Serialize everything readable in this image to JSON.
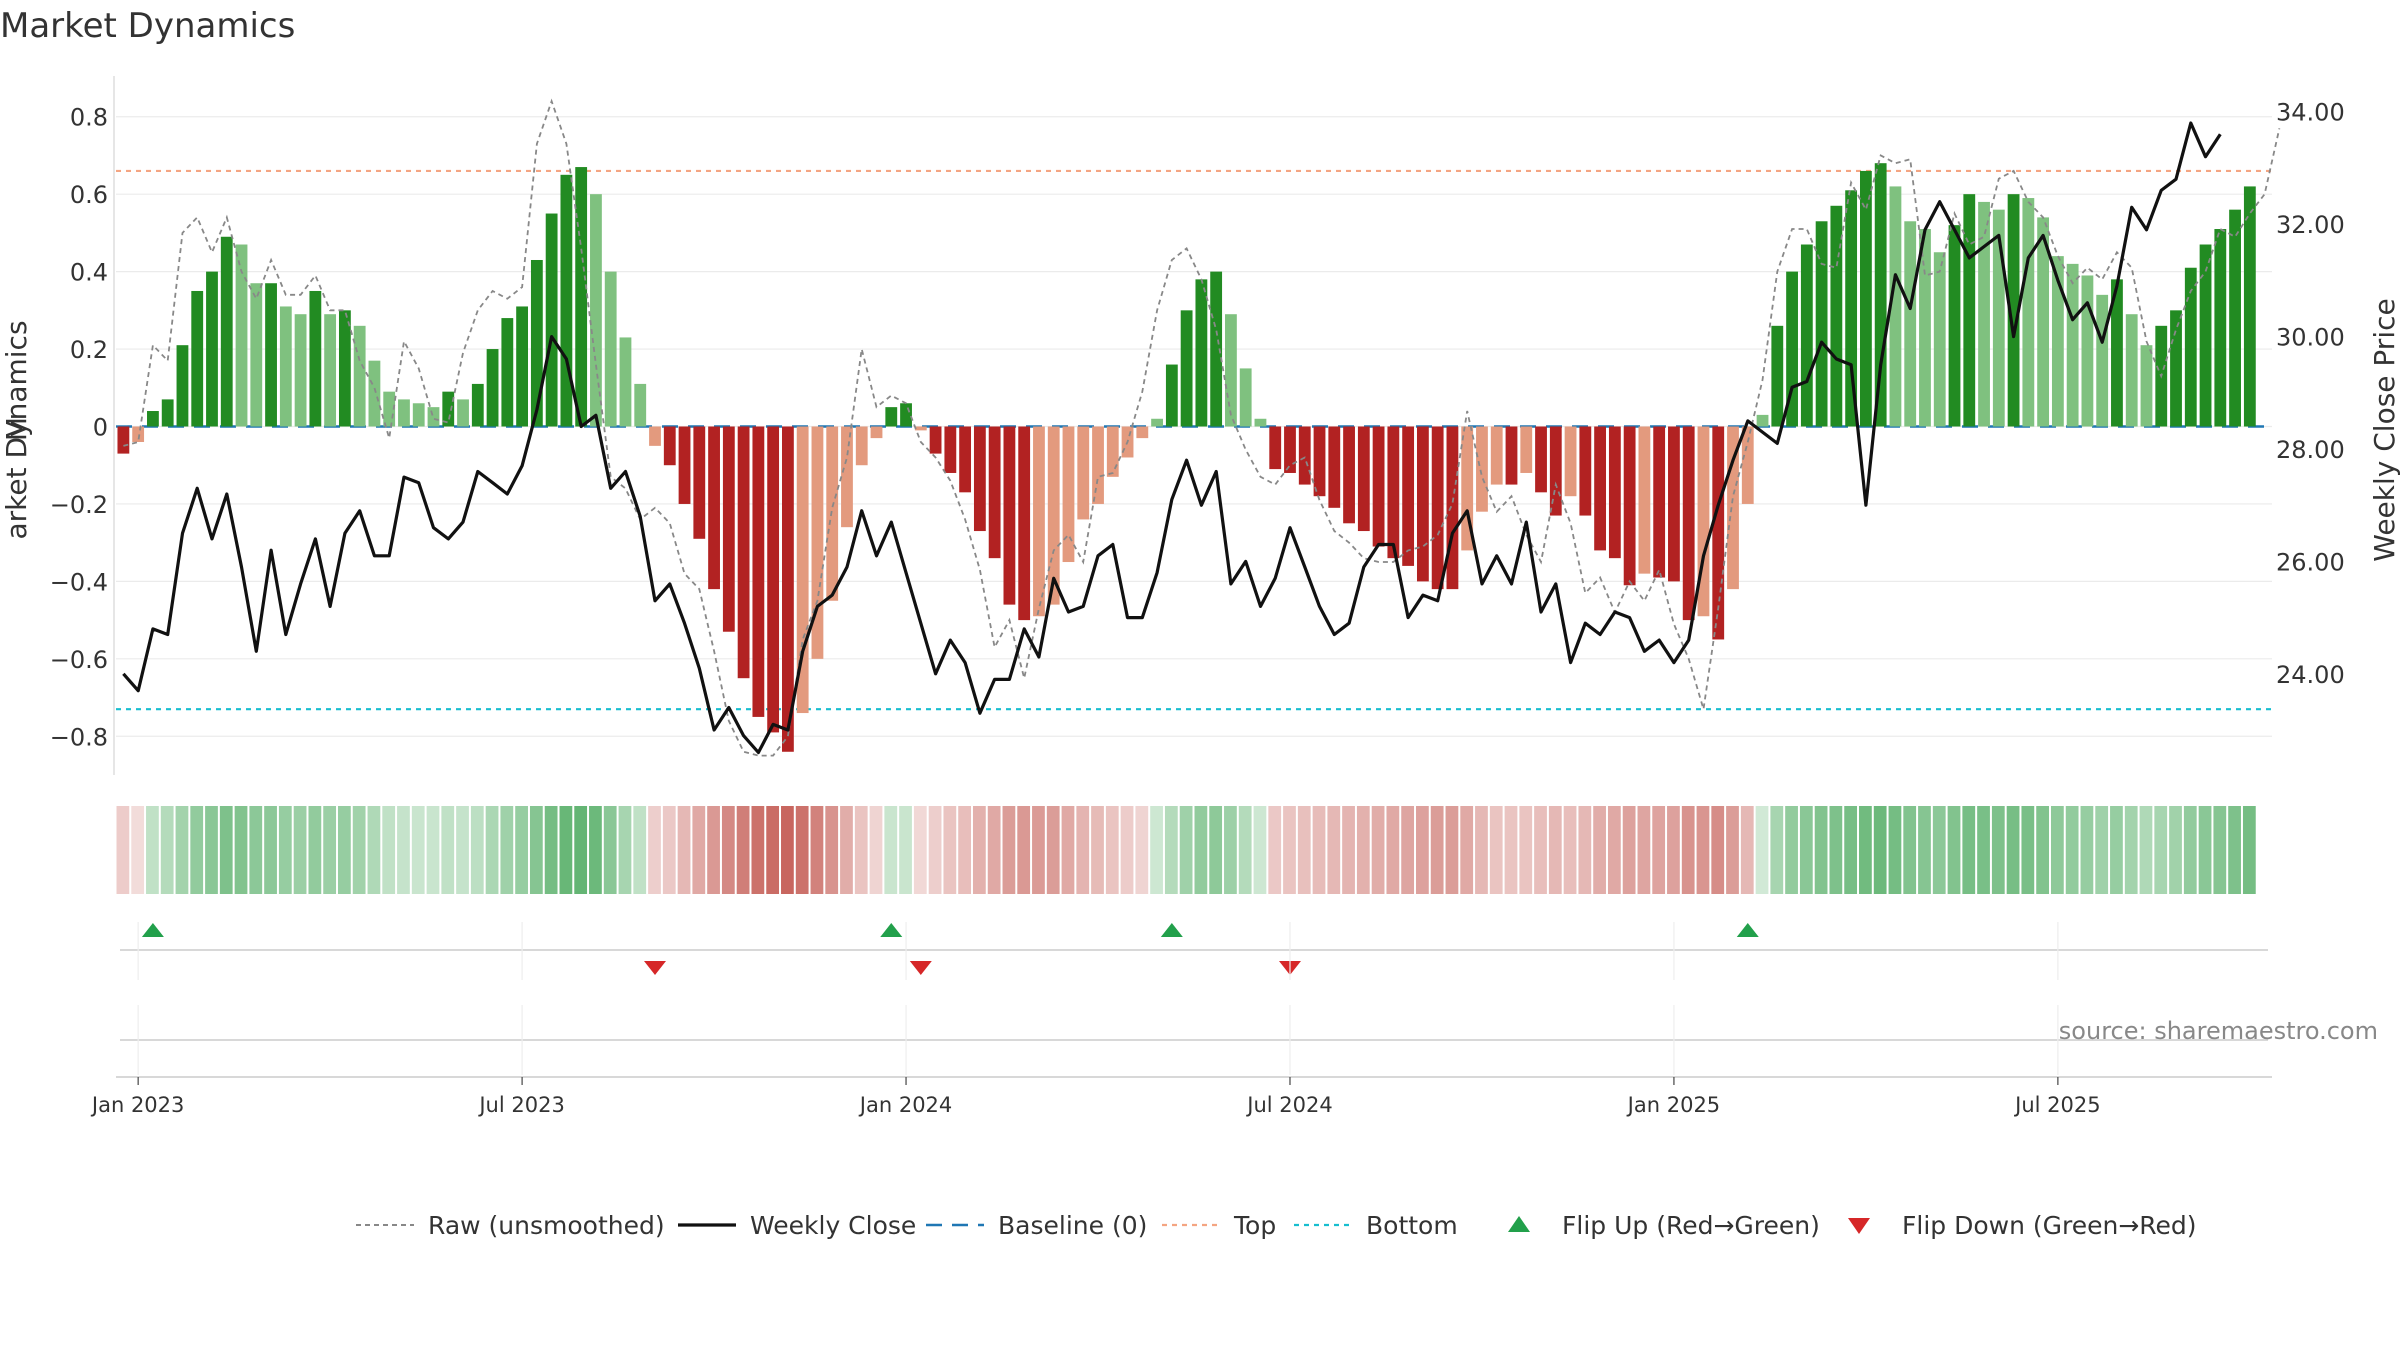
{
  "chart_data": {
    "type": "bar",
    "title": "Market Dynamics",
    "ylabel_left": "Market Dynamics",
    "ylabel_right": "Weekly Close Price",
    "source": "source: sharemaestro.com",
    "ylim_left": [
      -0.9,
      0.9
    ],
    "ylim_right": [
      22.2,
      34.6
    ],
    "yticks_left": [
      0.8,
      0.6,
      0.4,
      0.2,
      0,
      -0.2,
      -0.4,
      -0.6,
      -0.8
    ],
    "yticks_left_labels": [
      "0.8",
      "0.6",
      "0.4",
      "0.2",
      "0",
      "−0.2",
      "−0.4",
      "−0.6",
      "−0.8"
    ],
    "yticks_right": [
      34,
      32,
      30,
      28,
      26,
      24
    ],
    "yticks_right_labels": [
      "34.00",
      "32.00",
      "30.00",
      "28.00",
      "26.00",
      "24.00"
    ],
    "x_start": "2022-12-26",
    "weeks": 146,
    "xticks": [
      {
        "week": 1,
        "label": "Jan 2023"
      },
      {
        "week": 27,
        "label": "Jul 2023"
      },
      {
        "week": 53,
        "label": "Jan 2024"
      },
      {
        "week": 79,
        "label": "Jul 2024"
      },
      {
        "week": 105,
        "label": "Jan 2025"
      },
      {
        "week": 131,
        "label": "Jul 2025"
      }
    ],
    "top_level": 0.66,
    "bottom_level": -0.73,
    "dynamics": [
      -0.07,
      -0.04,
      0.04,
      0.07,
      0.21,
      0.35,
      0.4,
      0.49,
      0.47,
      0.37,
      0.37,
      0.31,
      0.29,
      0.35,
      0.29,
      0.3,
      0.26,
      0.17,
      0.09,
      0.07,
      0.06,
      0.05,
      0.09,
      0.07,
      0.11,
      0.2,
      0.28,
      0.31,
      0.43,
      0.55,
      0.65,
      0.67,
      0.6,
      0.4,
      0.23,
      0.11,
      -0.05,
      -0.1,
      -0.2,
      -0.29,
      -0.42,
      -0.53,
      -0.65,
      -0.75,
      -0.79,
      -0.84,
      -0.74,
      -0.6,
      -0.45,
      -0.26,
      -0.1,
      -0.03,
      0.05,
      0.06,
      -0.01,
      -0.07,
      -0.12,
      -0.17,
      -0.27,
      -0.34,
      -0.46,
      -0.5,
      -0.49,
      -0.46,
      -0.35,
      -0.24,
      -0.2,
      -0.13,
      -0.08,
      -0.03,
      0.02,
      0.16,
      0.3,
      0.38,
      0.4,
      0.29,
      0.15,
      0.02,
      -0.11,
      -0.12,
      -0.15,
      -0.18,
      -0.21,
      -0.25,
      -0.27,
      -0.31,
      -0.34,
      -0.36,
      -0.4,
      -0.42,
      -0.42,
      -0.32,
      -0.22,
      -0.15,
      -0.15,
      -0.12,
      -0.17,
      -0.23,
      -0.18,
      -0.23,
      -0.32,
      -0.34,
      -0.41,
      -0.38,
      -0.39,
      -0.4,
      -0.5,
      -0.49,
      -0.55,
      -0.42,
      -0.2,
      0.03,
      0.26,
      0.4,
      0.47,
      0.53,
      0.57,
      0.61,
      0.66,
      0.68,
      0.62,
      0.53,
      0.51,
      0.45,
      0.52,
      0.6,
      0.58,
      0.56,
      0.6,
      0.59,
      0.54,
      0.44,
      0.42,
      0.39,
      0.34,
      0.38,
      0.29,
      0.21,
      0.26,
      0.3,
      0.41,
      0.47,
      0.51,
      0.56,
      0.62
    ],
    "raw": [
      -0.05,
      -0.04,
      0.21,
      0.17,
      0.5,
      0.54,
      0.45,
      0.54,
      0.4,
      0.33,
      0.43,
      0.34,
      0.34,
      0.39,
      0.3,
      0.3,
      0.17,
      0.1,
      -0.03,
      0.22,
      0.15,
      0.02,
      0.01,
      0.19,
      0.3,
      0.35,
      0.33,
      0.36,
      0.73,
      0.84,
      0.73,
      0.46,
      0.16,
      -0.13,
      -0.16,
      -0.24,
      -0.21,
      -0.25,
      -0.38,
      -0.42,
      -0.58,
      -0.76,
      -0.84,
      -0.85,
      -0.85,
      -0.8,
      -0.55,
      -0.45,
      -0.21,
      -0.08,
      0.2,
      0.05,
      0.08,
      0.06,
      -0.04,
      -0.08,
      -0.14,
      -0.24,
      -0.37,
      -0.57,
      -0.5,
      -0.65,
      -0.47,
      -0.32,
      -0.28,
      -0.35,
      -0.13,
      -0.12,
      -0.04,
      0.09,
      0.3,
      0.43,
      0.46,
      0.38,
      0.25,
      0.03,
      -0.06,
      -0.13,
      -0.15,
      -0.1,
      -0.08,
      -0.19,
      -0.27,
      -0.3,
      -0.34,
      -0.35,
      -0.35,
      -0.32,
      -0.31,
      -0.28,
      -0.2,
      0.04,
      -0.13,
      -0.22,
      -0.18,
      -0.28,
      -0.35,
      -0.15,
      -0.25,
      -0.43,
      -0.39,
      -0.48,
      -0.4,
      -0.45,
      -0.37,
      -0.51,
      -0.6,
      -0.73,
      -0.47,
      -0.18,
      -0.04,
      0.12,
      0.4,
      0.51,
      0.51,
      0.42,
      0.41,
      0.63,
      0.56,
      0.7,
      0.68,
      0.69,
      0.39,
      0.4,
      0.55,
      0.47,
      0.49,
      0.64,
      0.66,
      0.58,
      0.54,
      0.44,
      0.37,
      0.41,
      0.38,
      0.45,
      0.41,
      0.22,
      0.13,
      0.25,
      0.35,
      0.4,
      0.51,
      0.49,
      0.55,
      0.6,
      0.77
    ],
    "close": [
      24.0,
      23.7,
      24.8,
      24.7,
      26.5,
      27.3,
      26.4,
      27.2,
      25.9,
      24.4,
      26.2,
      24.7,
      25.6,
      26.4,
      25.2,
      26.5,
      26.9,
      26.1,
      26.1,
      27.5,
      27.4,
      26.6,
      26.4,
      26.7,
      27.6,
      27.4,
      27.2,
      27.7,
      28.7,
      30.0,
      29.6,
      28.4,
      28.6,
      27.3,
      27.6,
      26.8,
      25.3,
      25.6,
      24.9,
      24.1,
      23.0,
      23.4,
      22.9,
      22.6,
      23.1,
      23.0,
      24.4,
      25.2,
      25.4,
      25.9,
      26.9,
      26.1,
      26.7,
      25.8,
      24.9,
      24.0,
      24.6,
      24.2,
      23.3,
      23.9,
      23.9,
      24.8,
      24.3,
      25.7,
      25.1,
      25.2,
      26.1,
      26.3,
      25.0,
      25.0,
      25.8,
      27.1,
      27.8,
      27.0,
      27.6,
      25.6,
      26.0,
      25.2,
      25.7,
      26.6,
      25.9,
      25.2,
      24.7,
      24.9,
      25.9,
      26.3,
      26.3,
      25.0,
      25.4,
      25.3,
      26.5,
      26.9,
      25.6,
      26.1,
      25.6,
      26.7,
      25.1,
      25.6,
      24.2,
      24.9,
      24.7,
      25.1,
      25.0,
      24.4,
      24.6,
      24.2,
      24.6,
      26.1,
      27.0,
      27.8,
      28.5,
      28.3,
      28.1,
      29.1,
      29.2,
      29.9,
      29.6,
      29.5,
      27.0,
      29.5,
      31.1,
      30.5,
      31.9,
      32.4,
      31.9,
      31.4,
      31.6,
      31.8,
      30.0,
      31.4,
      31.8,
      31.0,
      30.3,
      30.6,
      29.9,
      30.9,
      32.3,
      31.9,
      32.6,
      32.8,
      33.8,
      33.2,
      33.6
    ],
    "strip_alpha": [
      0.26,
      0.18,
      0.3,
      0.36,
      0.44,
      0.52,
      0.56,
      0.62,
      0.6,
      0.55,
      0.55,
      0.5,
      0.48,
      0.52,
      0.48,
      0.5,
      0.45,
      0.38,
      0.3,
      0.28,
      0.26,
      0.26,
      0.3,
      0.28,
      0.32,
      0.4,
      0.46,
      0.5,
      0.58,
      0.66,
      0.72,
      0.74,
      0.7,
      0.56,
      0.42,
      0.3,
      0.25,
      0.28,
      0.36,
      0.44,
      0.52,
      0.6,
      0.66,
      0.72,
      0.75,
      0.78,
      0.72,
      0.64,
      0.55,
      0.42,
      0.3,
      0.22,
      0.26,
      0.26,
      0.2,
      0.25,
      0.3,
      0.33,
      0.4,
      0.44,
      0.5,
      0.52,
      0.51,
      0.5,
      0.44,
      0.38,
      0.35,
      0.3,
      0.26,
      0.22,
      0.24,
      0.36,
      0.46,
      0.52,
      0.54,
      0.47,
      0.36,
      0.24,
      0.28,
      0.3,
      0.32,
      0.34,
      0.36,
      0.38,
      0.4,
      0.42,
      0.44,
      0.46,
      0.48,
      0.5,
      0.5,
      0.44,
      0.36,
      0.3,
      0.3,
      0.3,
      0.33,
      0.36,
      0.33,
      0.36,
      0.42,
      0.44,
      0.48,
      0.46,
      0.47,
      0.48,
      0.55,
      0.54,
      0.58,
      0.5,
      0.36,
      0.22,
      0.42,
      0.52,
      0.56,
      0.6,
      0.62,
      0.65,
      0.68,
      0.7,
      0.66,
      0.6,
      0.58,
      0.55,
      0.6,
      0.65,
      0.64,
      0.62,
      0.65,
      0.64,
      0.6,
      0.54,
      0.52,
      0.5,
      0.46,
      0.5,
      0.44,
      0.38,
      0.42,
      0.45,
      0.52,
      0.56,
      0.58,
      0.62,
      0.66
    ],
    "flips_up": [
      2,
      52,
      71,
      110
    ],
    "flips_down": [
      36,
      54,
      79
    ],
    "legend": [
      "Raw (unsmoothed)",
      "Weekly Close",
      "Baseline (0)",
      "Top",
      "Bottom",
      "Flip Up (Red→Green)",
      "Flip Down (Green→Red)"
    ]
  },
  "colors": {
    "green_strong": "#228b22",
    "green_light": "#7fc17f",
    "red_strong": "#b22222",
    "red_light": "#e39a7e",
    "strip_green": "#2e9b43",
    "strip_red": "#b83b32",
    "close_line": "#111111",
    "raw_line": "#888888",
    "baseline": "#1f77b4",
    "top": "#f4a582",
    "bottom": "#17becf",
    "flip_up": "#22a04b",
    "flip_down": "#d62728"
  }
}
